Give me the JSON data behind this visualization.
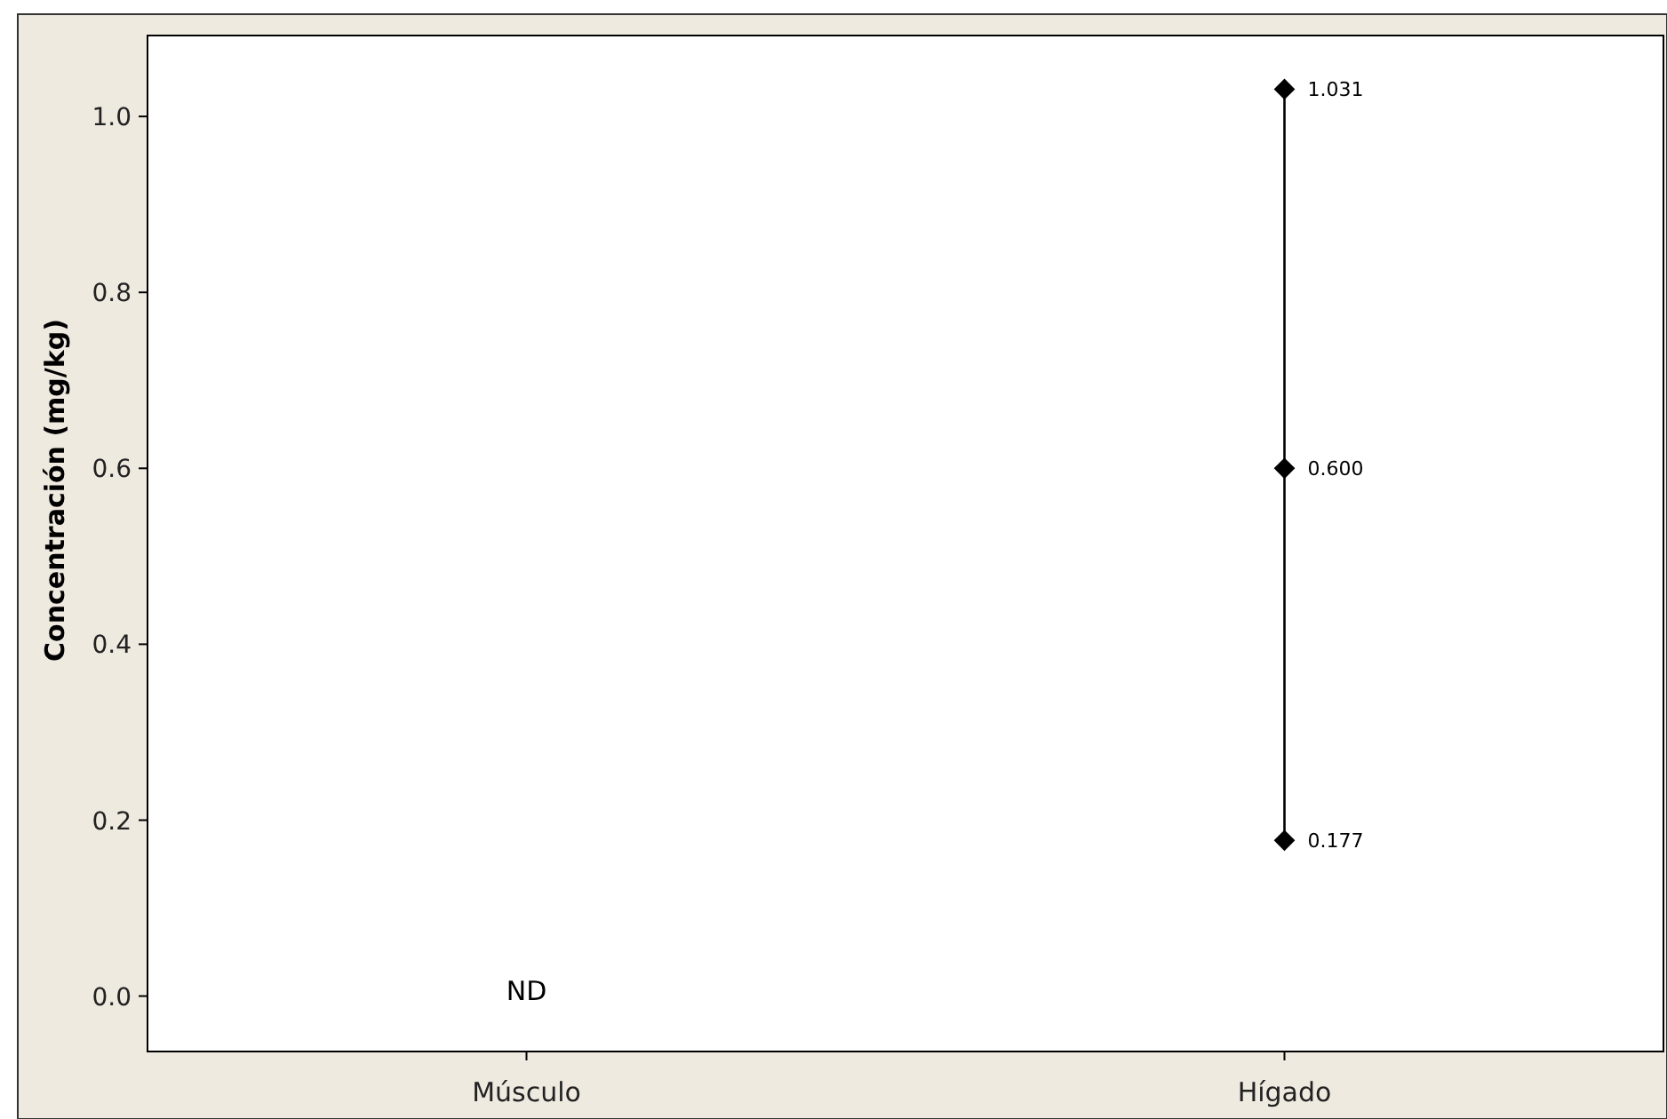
{
  "chart_data": {
    "type": "line",
    "ylabel": "Concentración (mg/kg)",
    "categories": [
      "Músculo",
      "Hígado"
    ],
    "series": [
      {
        "color": "#000000",
        "x": [
          "Hígado",
          "Hígado",
          "Hígado"
        ],
        "values": [
          0.177,
          0.6,
          1.031
        ],
        "value_labels": [
          "0.177",
          "0.600",
          "1.031"
        ]
      }
    ],
    "ylim": [
      -0.063,
      1.092
    ],
    "yticks": [
      {
        "value": 0,
        "label": "0.0"
      },
      {
        "value": 0.2,
        "label": "0.2"
      },
      {
        "value": 0.4,
        "label": "0.4"
      },
      {
        "value": 0.6,
        "label": "0.6"
      },
      {
        "value": 0.8,
        "label": "0.8"
      },
      {
        "value": 1,
        "label": "1.0"
      }
    ],
    "marker": "diamond",
    "line_style": "solid",
    "grid": false,
    "annotations": [
      "ND"
    ]
  }
}
